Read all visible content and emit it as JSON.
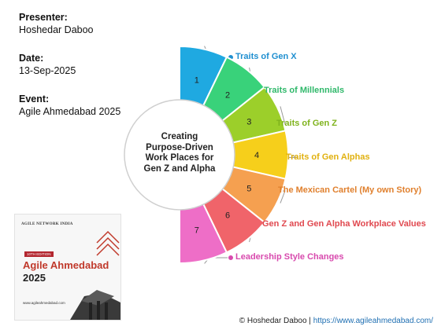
{
  "presenter": {
    "label": "Presenter:",
    "value": "Hoshedar Daboo"
  },
  "date": {
    "label": "Date:",
    "value": "13-Sep-2025"
  },
  "event": {
    "label": "Event:",
    "value": "Agile Ahmedabad 2025"
  },
  "center": {
    "lines": [
      "Creating",
      "Purpose-Driven",
      "Work Places for",
      "Gen Z and Alpha"
    ]
  },
  "segments": [
    {
      "number": "1",
      "label": "Traits of Gen X",
      "color": "#1fa9e1",
      "label_color": "#1f8fd0"
    },
    {
      "number": "2",
      "label": "Traits of Millennials",
      "color": "#39d27a",
      "label_color": "#2fb86a"
    },
    {
      "number": "3",
      "label": "Traits of Gen Z",
      "color": "#9ccf2a",
      "label_color": "#7fb31d"
    },
    {
      "number": "4",
      "label": "Traits of Gen Alphas",
      "color": "#f6cf1b",
      "label_color": "#e1b10f"
    },
    {
      "number": "5",
      "label": "The Mexican Cartel (My own Story)",
      "color": "#f5a050",
      "label_color": "#e0802e"
    },
    {
      "number": "6",
      "label": "Gen Z and Gen Alpha Workplace Values",
      "color": "#f0646a",
      "label_color": "#e0484f"
    },
    {
      "number": "7",
      "label": "Leadership Style Changes",
      "color": "#ee6ec7",
      "label_color": "#d84aae"
    }
  ],
  "poster": {
    "org": "AGILE NETWORK INDIA",
    "edition": "10TH EDITION",
    "title_line1": "Agile Ahmedabad",
    "title_line2": "2025",
    "url": "www.agileahmedabad.com"
  },
  "footer": {
    "copyright": "© Hoshedar Daboo |",
    "url": "https://www.agileahmedabad.com/"
  }
}
